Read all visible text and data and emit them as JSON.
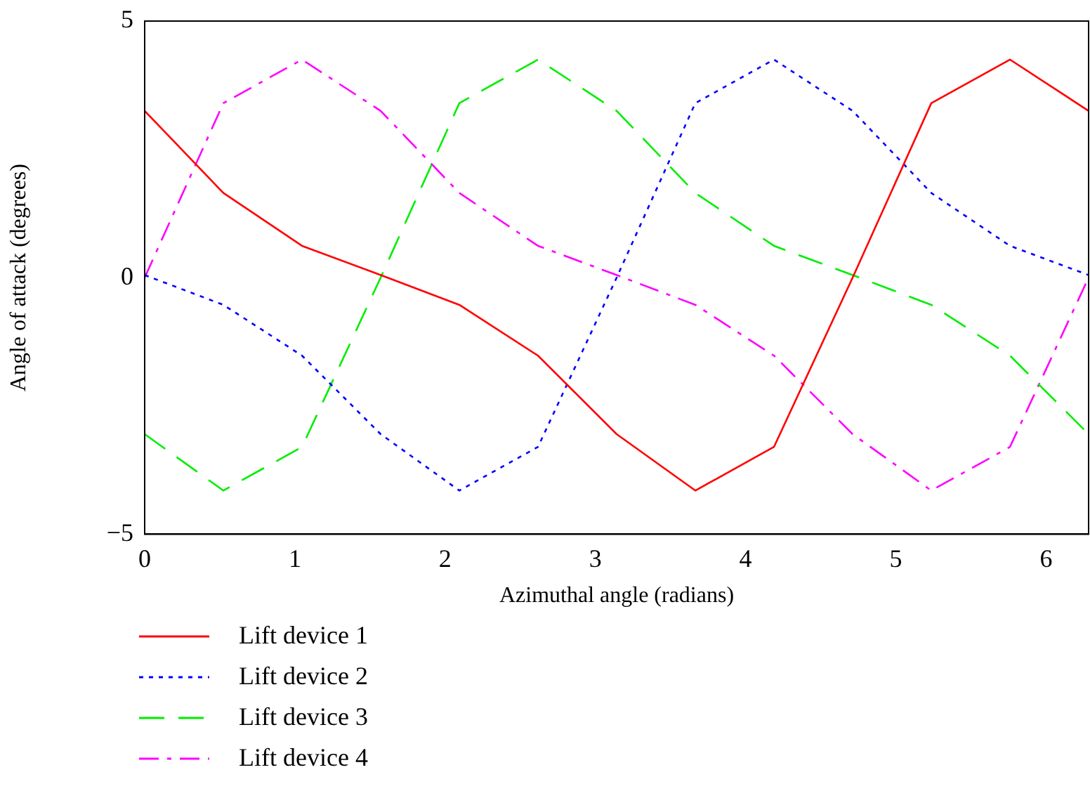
{
  "chart_data": {
    "type": "line",
    "xlabel": "Azimuthal angle (radians)",
    "ylabel": "Angle of attack (degrees)",
    "x": [
      0,
      0.5236,
      1.0472,
      1.5708,
      2.0944,
      2.618,
      3.1416,
      3.6652,
      4.1888,
      4.7124,
      5.236,
      5.7596,
      6.2832
    ],
    "series": [
      {
        "name": "Lift device 1",
        "color": "#ff0000",
        "line_style": "solid",
        "values": [
          3.25,
          1.65,
          0.62,
          0.05,
          -0.53,
          -1.52,
          -3.05,
          -4.15,
          -3.3,
          0,
          3.4,
          4.25,
          3.25
        ]
      },
      {
        "name": "Lift device 2",
        "color": "#0000ff",
        "line_style": "dotted",
        "values": [
          0.05,
          -0.53,
          -1.52,
          -3.05,
          -4.15,
          -3.3,
          0,
          3.4,
          4.25,
          3.25,
          1.65,
          0.62,
          0.05
        ]
      },
      {
        "name": "Lift device 3",
        "color": "#00ee00",
        "line_style": "dashed",
        "values": [
          -3.05,
          -4.15,
          -3.3,
          0,
          3.4,
          4.25,
          3.25,
          1.65,
          0.62,
          0.05,
          -0.53,
          -1.52,
          -3.05
        ]
      },
      {
        "name": "Lift device 4",
        "color": "#ff00ff",
        "line_style": "dashdot",
        "values": [
          0,
          3.4,
          4.25,
          3.25,
          1.65,
          0.62,
          0.05,
          -0.53,
          -1.52,
          -3.05,
          -4.15,
          -3.3,
          0
        ]
      }
    ],
    "xlim": [
      0,
      6.2832
    ],
    "xticks": [
      0,
      1,
      2,
      3,
      4,
      5,
      6
    ],
    "ylim": [
      -5,
      5
    ],
    "yticks": [
      -5,
      0,
      5
    ],
    "grid": false,
    "legend": "bottom left",
    "marker": "none"
  }
}
